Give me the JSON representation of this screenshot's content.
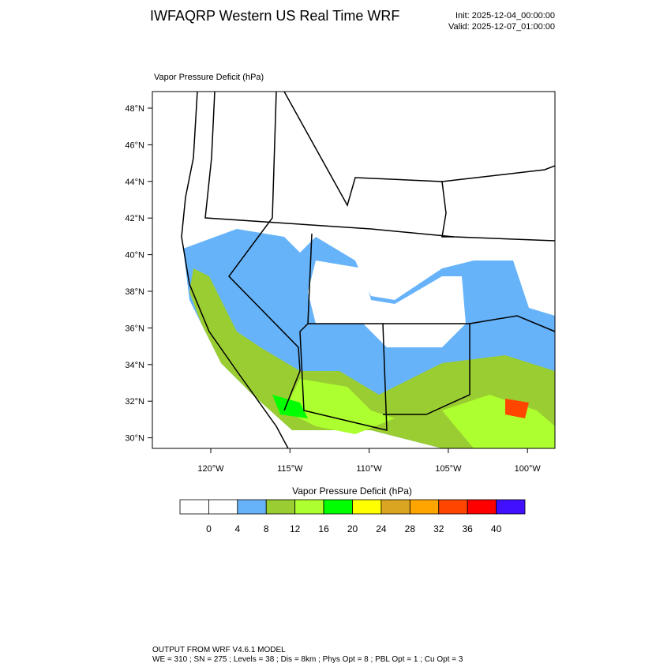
{
  "header": {
    "title": "IWFAQRP Western US Real Time WRF",
    "init": "Init: 2025-12-04_00:00:00",
    "valid": "Valid: 2025-12-07_01:00:00"
  },
  "map": {
    "title": "Vapor Pressure Deficit   (hPa)",
    "lat_labels": [
      "48°N",
      "46°N",
      "44°N",
      "42°N",
      "40°N",
      "38°N",
      "36°N",
      "34°N",
      "32°N",
      "30°N"
    ],
    "lon_labels": [
      "120°W",
      "115°W",
      "110°W",
      "105°W",
      "100°W"
    ]
  },
  "colorbar": {
    "title": "Vapor Pressure Deficit  (hPa)",
    "levels": [
      0,
      4,
      8,
      12,
      16,
      20,
      24,
      28,
      32,
      36,
      40
    ],
    "colors": [
      "#ffffff",
      "#ffffff",
      "#66b3fa",
      "#9acd32",
      "#adff2f",
      "#00ff00",
      "#ffff00",
      "#daa520",
      "#ffa500",
      "#ff4500",
      "#ff0000",
      "#4010ff"
    ]
  },
  "footer": {
    "line1": "OUTPUT FROM WRF V4.6.1 MODEL",
    "line2": "WE = 310 ; SN = 275 ; Levels = 38 ; Dis = 8km ; Phys Opt = 8 ; PBL Opt = 1 ; Cu Opt = 3"
  }
}
